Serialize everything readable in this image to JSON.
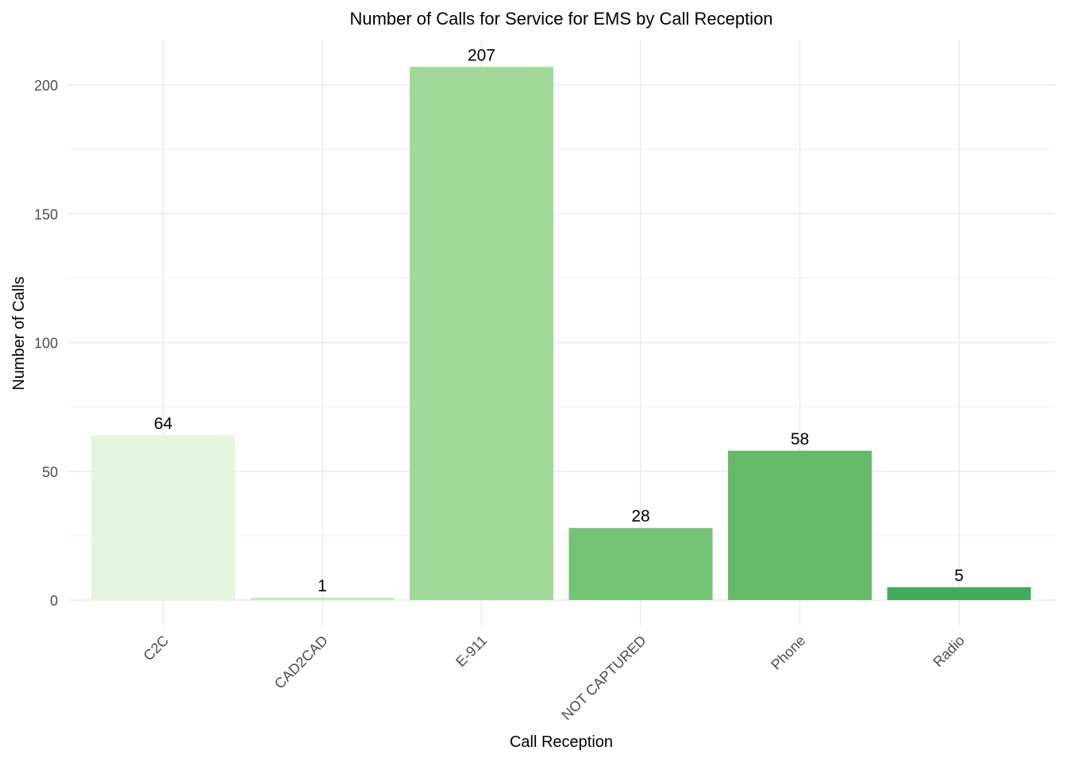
{
  "chart_data": {
    "type": "bar",
    "title": "Number of Calls for Service for EMS by Call Reception",
    "xlabel": "Call Reception",
    "ylabel": "Number of Calls",
    "categories": [
      "C2C",
      "CAD2CAD",
      "E-911",
      "NOT CAPTURED",
      "Phone",
      "Radio"
    ],
    "values": [
      64,
      1,
      207,
      28,
      58,
      5
    ],
    "data_labels": [
      "64",
      "1",
      "207",
      "28",
      "58",
      "5"
    ],
    "colors": [
      "#e5f5e0",
      "#c7e9c0",
      "#a1d99b",
      "#74c476",
      "#66bb6a",
      "#41ab5d"
    ],
    "ylim": [
      0,
      217
    ],
    "y_ticks": [
      0,
      50,
      100,
      150,
      200
    ],
    "y_tick_labels": [
      "0",
      "50",
      "100",
      "150",
      "200"
    ],
    "x_tick_rotation": "45 degrees",
    "grid": true,
    "legend": "none"
  }
}
